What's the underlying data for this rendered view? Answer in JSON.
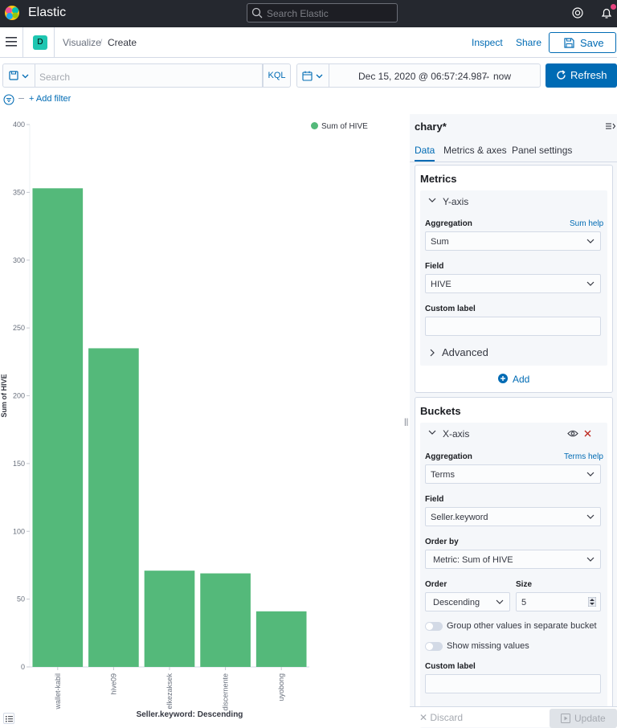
{
  "header": {
    "brand": "Elastic",
    "search_placeholder": "Search Elastic"
  },
  "nav": {
    "space_initial": "D",
    "breadcrumb_parent": "Visualize",
    "breadcrumb_separator": "/",
    "breadcrumb_current": "Create",
    "inspect_label": "Inspect",
    "share_label": "Share",
    "save_label": "Save"
  },
  "query": {
    "placeholder": "Search",
    "language_label": "KQL",
    "date_start": "Dec 15, 2020 @ 06:57:24.987",
    "date_arrow": "→",
    "date_end": "now",
    "refresh_label": "Refresh",
    "add_filter_label": "+ Add filter"
  },
  "colors": {
    "accent": "#006bb4",
    "bar": "#54b97a",
    "header_bg": "#25282f"
  },
  "chart_data": {
    "type": "bar",
    "categories": [
      "wallet-kabil",
      "hive09",
      "elkezaksek",
      "discernente",
      "uyobong"
    ],
    "series": [
      {
        "name": "Sum of HIVE",
        "values": [
          353,
          235,
          71,
          69,
          41
        ]
      }
    ],
    "xlabel": "Seller.keyword: Descending",
    "ylabel": "Sum of HIVE",
    "ylim": [
      0,
      400
    ],
    "yticks": [
      0,
      50,
      100,
      150,
      200,
      250,
      300,
      350,
      400
    ],
    "legend_position": "top-right",
    "grid": false
  },
  "sidebar": {
    "title": "chary*",
    "tabs": [
      "Data",
      "Metrics & axes",
      "Panel settings"
    ],
    "metrics": {
      "title": "Metrics",
      "yaxis_title": "Y-axis",
      "aggregation_label": "Aggregation",
      "aggregation_help": "Sum help",
      "aggregation_value": "Sum",
      "field_label": "Field",
      "field_value": "HIVE",
      "custom_label_label": "Custom label",
      "advanced_label": "Advanced",
      "add_label": "Add"
    },
    "buckets": {
      "title": "Buckets",
      "xaxis_title": "X-axis",
      "aggregation_label": "Aggregation",
      "aggregation_help": "Terms help",
      "aggregation_value": "Terms",
      "field_label": "Field",
      "field_value": "Seller.keyword",
      "order_by_label": "Order by",
      "order_by_value": "Metric: Sum of HIVE",
      "order_label": "Order",
      "order_value": "Descending",
      "size_label": "Size",
      "size_value": "5",
      "group_other_label": "Group other values in separate bucket",
      "show_missing_label": "Show missing values",
      "custom_label_label": "Custom label"
    },
    "discard_label": "Discard",
    "update_label": "Update"
  }
}
